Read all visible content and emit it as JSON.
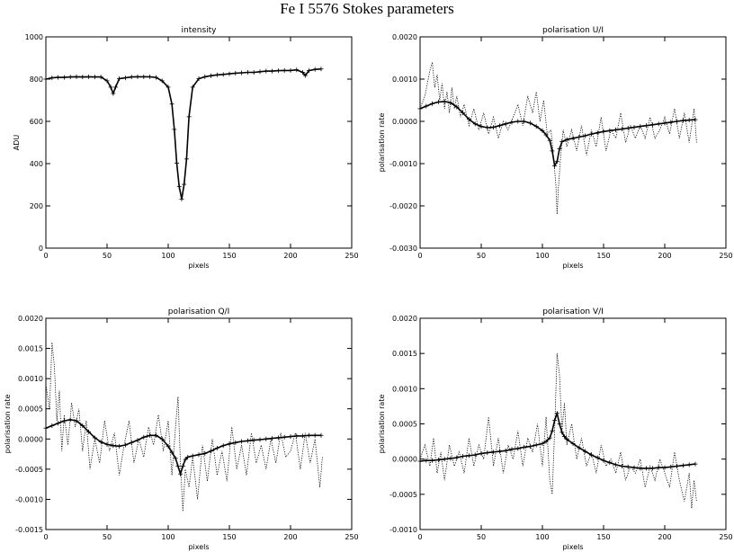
{
  "suptitle": "Fe I 5576 Stokes parameters",
  "chart_data": [
    {
      "type": "line",
      "title": "intensity",
      "xlabel": "pixels",
      "ylabel": "ADU",
      "xlim": [
        0,
        250
      ],
      "ylim": [
        0,
        1000
      ],
      "xticks": [
        0,
        50,
        100,
        150,
        200,
        250
      ],
      "yticks": [
        0,
        200,
        400,
        600,
        800,
        1000
      ],
      "series": [
        {
          "style": "observed-dotted",
          "x": [
            0,
            5,
            10,
            15,
            20,
            25,
            30,
            35,
            40,
            45,
            50,
            53,
            55,
            57,
            60,
            65,
            70,
            75,
            80,
            85,
            90,
            95,
            100,
            103,
            105,
            107,
            109,
            111,
            113,
            115,
            117,
            120,
            125,
            130,
            135,
            140,
            145,
            150,
            155,
            160,
            165,
            170,
            175,
            180,
            185,
            190,
            195,
            200,
            205,
            210,
            212,
            215,
            220,
            225
          ],
          "y": [
            800,
            805,
            808,
            806,
            810,
            812,
            808,
            812,
            809,
            810,
            790,
            760,
            730,
            760,
            800,
            805,
            810,
            812,
            810,
            812,
            808,
            790,
            760,
            680,
            560,
            400,
            280,
            240,
            300,
            420,
            620,
            760,
            800,
            810,
            815,
            820,
            822,
            825,
            828,
            830,
            832,
            830,
            835,
            838,
            836,
            840,
            842,
            840,
            845,
            830,
            815,
            840,
            846,
            848
          ]
        },
        {
          "style": "fit-plus",
          "x": [
            0,
            5,
            10,
            15,
            20,
            25,
            30,
            35,
            40,
            45,
            50,
            53,
            55,
            57,
            60,
            65,
            70,
            75,
            80,
            85,
            90,
            95,
            100,
            103,
            105,
            107,
            109,
            111,
            113,
            115,
            117,
            120,
            125,
            130,
            135,
            140,
            145,
            150,
            155,
            160,
            165,
            170,
            175,
            180,
            185,
            190,
            195,
            200,
            205,
            210,
            212,
            215,
            220,
            225
          ],
          "y": [
            800,
            806,
            808,
            808,
            810,
            811,
            810,
            811,
            810,
            810,
            792,
            762,
            732,
            762,
            802,
            806,
            810,
            811,
            811,
            811,
            808,
            792,
            762,
            682,
            562,
            402,
            292,
            232,
            302,
            422,
            622,
            762,
            802,
            811,
            816,
            820,
            822,
            825,
            828,
            830,
            832,
            832,
            835,
            838,
            838,
            840,
            841,
            841,
            844,
            832,
            817,
            840,
            846,
            848
          ]
        }
      ]
    },
    {
      "type": "line",
      "title": "polarisation U/I",
      "xlabel": "pixels",
      "ylabel": "polarisation rate",
      "xlim": [
        0,
        250
      ],
      "ylim": [
        -0.003,
        0.002
      ],
      "xticks": [
        0,
        50,
        100,
        150,
        200,
        250
      ],
      "yticks": [
        -0.003,
        -0.002,
        -0.001,
        0.0,
        0.001,
        0.002
      ],
      "series": [
        {
          "style": "observed-dotted",
          "x": [
            0,
            4,
            8,
            10,
            12,
            14,
            16,
            18,
            20,
            22,
            24,
            26,
            28,
            30,
            33,
            36,
            40,
            44,
            48,
            52,
            56,
            60,
            64,
            68,
            72,
            76,
            80,
            84,
            88,
            92,
            95,
            98,
            101,
            104,
            107,
            109,
            111,
            112,
            113,
            115,
            117,
            120,
            124,
            128,
            132,
            136,
            140,
            144,
            148,
            152,
            156,
            160,
            164,
            168,
            172,
            176,
            180,
            184,
            188,
            192,
            196,
            200,
            204,
            208,
            212,
            216,
            220,
            224,
            226
          ],
          "y": [
            0.0003,
            0.0006,
            0.0012,
            0.0014,
            0.0008,
            0.0011,
            0.0005,
            0.0009,
            0.0003,
            0.0007,
            0.0002,
            0.0008,
            0.0003,
            0.0006,
            0.0001,
            0.0004,
            -0.0001,
            0.0003,
            -0.0002,
            0.0002,
            -0.0003,
            0.0001,
            -0.0004,
            0.0,
            -0.0002,
            0.0001,
            0.0004,
            -0.0001,
            0.0006,
            0.0002,
            0.0007,
            0.0,
            0.0005,
            -0.0003,
            -0.0002,
            -0.0008,
            -0.0015,
            -0.0022,
            -0.0016,
            -0.0008,
            -0.0002,
            -0.0006,
            -0.0002,
            -0.0007,
            -0.0001,
            -0.0008,
            -0.0002,
            -0.0006,
            0.0001,
            -0.0007,
            -0.0002,
            -0.0004,
            0.0002,
            -0.0005,
            -0.0001,
            -0.0004,
            -0.0001,
            -0.0004,
            0.0001,
            -0.0004,
            -0.0002,
            0.0001,
            -0.0003,
            0.0003,
            -0.0004,
            0.0002,
            -0.0005,
            0.0003,
            -0.0005
          ]
        },
        {
          "style": "fit-plus",
          "x": [
            0,
            5,
            10,
            15,
            20,
            25,
            30,
            35,
            40,
            45,
            50,
            55,
            60,
            65,
            70,
            75,
            80,
            85,
            90,
            95,
            100,
            103,
            106,
            108,
            110,
            112,
            114,
            116,
            120,
            125,
            130,
            135,
            140,
            145,
            150,
            155,
            160,
            165,
            170,
            175,
            180,
            185,
            190,
            195,
            200,
            205,
            210,
            215,
            220,
            225
          ],
          "y": [
            0.0003,
            0.00036,
            0.00042,
            0.00046,
            0.00047,
            0.00044,
            0.00034,
            0.0002,
            5e-05,
            -6e-05,
            -0.00012,
            -0.00015,
            -0.00014,
            -0.0001,
            -6e-05,
            -2e-05,
            0.0,
            0.0,
            -4e-05,
            -0.00012,
            -0.00022,
            -0.00032,
            -0.00045,
            -0.0007,
            -0.00105,
            -0.00095,
            -0.00065,
            -0.00048,
            -0.00043,
            -0.0004,
            -0.00037,
            -0.00034,
            -0.0003,
            -0.00027,
            -0.00024,
            -0.00022,
            -0.0002,
            -0.00018,
            -0.00016,
            -0.00014,
            -0.00012,
            -0.0001,
            -8e-05,
            -6e-05,
            -4e-05,
            -2e-05,
            0.0,
            2e-05,
            3e-05,
            4e-05
          ]
        }
      ]
    },
    {
      "type": "line",
      "title": "polarisation Q/I",
      "xlabel": "pixels",
      "ylabel": "polarisation rate",
      "xlim": [
        0,
        250
      ],
      "ylim": [
        -0.0015,
        0.002
      ],
      "xticks": [
        0,
        50,
        100,
        150,
        200,
        250
      ],
      "yticks": [
        -0.0015,
        -0.001,
        -0.0005,
        0.0,
        0.0005,
        0.001,
        0.0015,
        0.002
      ],
      "series": [
        {
          "style": "observed-dotted",
          "x": [
            0,
            3,
            5,
            7,
            9,
            11,
            13,
            15,
            18,
            21,
            24,
            27,
            30,
            33,
            36,
            40,
            44,
            48,
            52,
            56,
            60,
            64,
            68,
            72,
            76,
            80,
            84,
            88,
            92,
            96,
            100,
            103,
            106,
            108,
            110,
            112,
            114,
            117,
            120,
            124,
            128,
            132,
            136,
            140,
            144,
            148,
            152,
            156,
            160,
            164,
            168,
            172,
            176,
            180,
            184,
            188,
            192,
            196,
            200,
            204,
            208,
            212,
            216,
            220,
            224,
            226
          ],
          "y": [
            0.0009,
            0.0005,
            0.0016,
            0.0012,
            0.0003,
            0.0008,
            -0.0002,
            0.0004,
            -0.0001,
            0.0006,
            0.0002,
            0.0005,
            -0.0002,
            0.0003,
            -0.0005,
            0.0,
            -0.0004,
            0.0003,
            -0.0002,
            0.0001,
            -0.0006,
            -0.0001,
            0.0003,
            -0.0004,
            0.0,
            -0.0003,
            0.0002,
            -0.0001,
            0.0004,
            -0.0002,
            0.0003,
            -0.0006,
            0.0002,
            0.0007,
            -0.0004,
            -0.0012,
            -0.0005,
            -0.0008,
            -0.0003,
            -0.001,
            -0.0001,
            -0.0007,
            0.0,
            -0.0006,
            -0.0002,
            -0.0007,
            0.0002,
            -0.0005,
            -0.0001,
            -0.0006,
            0.0001,
            -0.0004,
            -0.0001,
            -0.0005,
            0.0,
            -0.0004,
            0.0001,
            -0.0003,
            -0.0002,
            0.0001,
            -0.0005,
            0.0001,
            -0.0004,
            0.0,
            -0.0008,
            -0.0003
          ]
        },
        {
          "style": "fit-plus",
          "x": [
            0,
            5,
            10,
            15,
            20,
            25,
            30,
            35,
            40,
            45,
            50,
            55,
            60,
            65,
            70,
            75,
            80,
            85,
            90,
            95,
            100,
            103,
            106,
            108,
            110,
            112,
            114,
            116,
            120,
            125,
            130,
            135,
            140,
            145,
            150,
            155,
            160,
            165,
            170,
            175,
            180,
            185,
            190,
            195,
            200,
            205,
            210,
            215,
            220,
            225
          ],
          "y": [
            0.00018,
            0.00022,
            0.00026,
            0.0003,
            0.00032,
            0.0003,
            0.00022,
            0.00012,
            2e-05,
            -5e-05,
            -9e-05,
            -0.00011,
            -0.00012,
            -0.0001,
            -6e-05,
            -2e-05,
            3e-05,
            6e-05,
            6e-05,
            0.0,
            -0.00012,
            -0.00022,
            -0.00032,
            -0.00045,
            -0.00058,
            -0.00045,
            -0.00034,
            -0.0003,
            -0.00028,
            -0.00026,
            -0.00024,
            -0.0002,
            -0.00015,
            -0.00011,
            -8e-05,
            -6e-05,
            -4e-05,
            -3e-05,
            -2e-05,
            -1e-05,
            0.0,
            1e-05,
            2e-05,
            3e-05,
            4e-05,
            5e-05,
            5e-05,
            6e-05,
            6e-05,
            6e-05
          ]
        }
      ]
    },
    {
      "type": "line",
      "title": "polarisation V/I",
      "xlabel": "pixels",
      "ylabel": "polarisation rate",
      "xlim": [
        0,
        250
      ],
      "ylim": [
        -0.001,
        0.002
      ],
      "xticks": [
        0,
        50,
        100,
        150,
        200,
        250
      ],
      "yticks": [
        -0.001,
        -0.0005,
        0.0,
        0.0005,
        0.001,
        0.0015,
        0.002
      ],
      "series": [
        {
          "style": "observed-dotted",
          "x": [
            0,
            4,
            8,
            11,
            14,
            17,
            20,
            24,
            28,
            32,
            36,
            40,
            44,
            48,
            52,
            56,
            60,
            64,
            68,
            72,
            76,
            80,
            84,
            88,
            92,
            96,
            100,
            103,
            106,
            108,
            110,
            112,
            114,
            116,
            118,
            120,
            124,
            128,
            132,
            136,
            140,
            144,
            148,
            152,
            156,
            160,
            164,
            168,
            172,
            176,
            180,
            184,
            188,
            192,
            196,
            200,
            204,
            208,
            212,
            216,
            220,
            222,
            224,
            226
          ],
          "y": [
            0.0,
            0.0002,
            -0.0001,
            0.0003,
            -0.0002,
            0.0001,
            -0.0003,
            0.0002,
            -0.0001,
            0.0001,
            -0.0002,
            0.0003,
            -0.0001,
            0.0002,
            0.0,
            0.0006,
            -0.0001,
            0.0003,
            -0.0002,
            0.0002,
            0.0,
            0.0004,
            -0.0001,
            0.0003,
            0.0001,
            0.0005,
            -0.0001,
            0.0006,
            -0.0003,
            -0.0005,
            0.0004,
            0.0015,
            0.0012,
            0.0004,
            0.0008,
            0.0002,
            0.0005,
            0.0,
            0.0003,
            -0.0001,
            0.0001,
            -0.0002,
            0.0002,
            -0.0001,
            0.0,
            -0.0002,
            0.0001,
            -0.0003,
            -0.0001,
            -0.0002,
            0.0,
            -0.0004,
            -0.0001,
            -0.0003,
            0.0,
            -0.0002,
            -0.0004,
            0.0001,
            -0.0003,
            -0.0006,
            -0.0002,
            -0.0007,
            -0.0003,
            -0.0006
          ]
        },
        {
          "style": "fit-plus",
          "x": [
            0,
            5,
            10,
            15,
            20,
            25,
            30,
            35,
            40,
            45,
            50,
            55,
            60,
            65,
            70,
            75,
            80,
            85,
            90,
            95,
            100,
            103,
            106,
            108,
            110,
            112,
            114,
            116,
            118,
            120,
            125,
            130,
            135,
            140,
            145,
            150,
            155,
            160,
            165,
            170,
            175,
            180,
            185,
            190,
            195,
            200,
            205,
            210,
            215,
            220,
            225
          ],
          "y": [
            -3e-05,
            -2e-05,
            -2e-05,
            -1e-05,
            0.0,
            1e-05,
            2e-05,
            4e-05,
            5e-05,
            6e-05,
            8e-05,
            9e-05,
            0.0001,
            0.00011,
            0.00012,
            0.00014,
            0.00015,
            0.00017,
            0.00018,
            0.0002,
            0.00022,
            0.00025,
            0.0003,
            0.0004,
            0.00055,
            0.00065,
            0.0005,
            0.00038,
            0.00032,
            0.00028,
            0.00022,
            0.00016,
            0.00011,
            6e-05,
            2e-05,
            -2e-05,
            -5e-05,
            -8e-05,
            -0.0001,
            -0.00011,
            -0.00012,
            -0.00013,
            -0.00013,
            -0.00013,
            -0.00012,
            -0.00012,
            -0.00011,
            -0.0001,
            -9e-05,
            -8e-05,
            -7e-05
          ]
        }
      ]
    }
  ]
}
